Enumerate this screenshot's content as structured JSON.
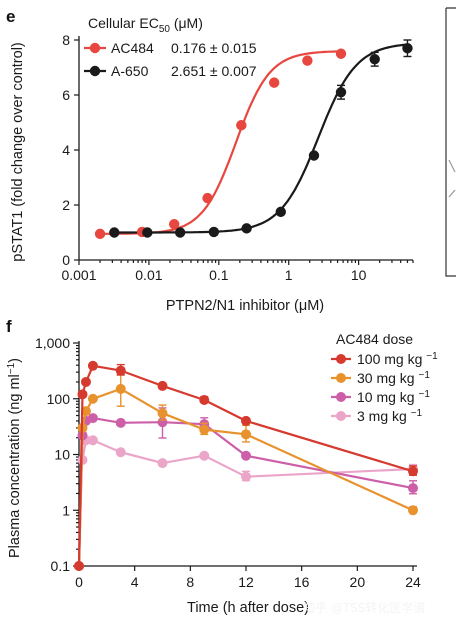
{
  "chart_data": [
    {
      "panel": "e",
      "type": "scatter",
      "x_scale": "log",
      "xlabel": "PTPN2/N1 inhibitor (μM)",
      "ylabel": "pSTAT1 (fold change over control)",
      "xlim": [
        0.001,
        60
      ],
      "ylim": [
        0,
        8
      ],
      "xticks": [
        "0.001",
        "0.01",
        "0.1",
        "1",
        "10"
      ],
      "yticks": [
        "0",
        "2",
        "4",
        "6",
        "8"
      ],
      "legend_title": "Cellular EC50 (μM)",
      "legend_placement": "top-left",
      "series": [
        {
          "name": "AC484",
          "ec50_text": "0.176 ± 0.015",
          "color": "#e8473f",
          "x": [
            0.002,
            0.008,
            0.023,
            0.069,
            0.21,
            0.62,
            1.85,
            5.6
          ],
          "y": [
            0.95,
            1.02,
            1.3,
            2.25,
            4.9,
            6.45,
            7.25,
            7.5
          ],
          "fit": {
            "bottom": 0.95,
            "top": 7.6,
            "ec50": 0.176,
            "hill": 1.8
          }
        },
        {
          "name": "A-650",
          "ec50_text": "2.651 ± 0.007",
          "color": "#1a1a1a",
          "x": [
            0.0032,
            0.0095,
            0.028,
            0.085,
            0.25,
            0.77,
            2.3,
            5.6,
            17,
            50
          ],
          "y": [
            1.0,
            1.0,
            1.0,
            1.02,
            1.15,
            1.75,
            3.8,
            6.1,
            7.3,
            7.7
          ],
          "yerr": [
            0,
            0,
            0,
            0,
            0,
            0,
            0,
            0.25,
            0.25,
            0.3
          ],
          "fit": {
            "bottom": 1.0,
            "top": 7.9,
            "ec50": 2.651,
            "hill": 1.6
          }
        }
      ]
    },
    {
      "panel": "f",
      "type": "line",
      "y_scale": "log",
      "xlabel": "Time (h after dose)",
      "ylabel": "Plasma concentration (ng ml-1)",
      "xlim": [
        0,
        24
      ],
      "ylim": [
        0.1,
        1000
      ],
      "xticks": [
        "0",
        "4",
        "8",
        "12",
        "16",
        "20",
        "24"
      ],
      "yticks": [
        "0.1",
        "1",
        "10",
        "100",
        "1,000"
      ],
      "legend_title": "AC484 dose",
      "legend_placement": "top-right",
      "series": [
        {
          "name": "100 mg kg-1",
          "color": "#d63a2f",
          "x": [
            0,
            0.25,
            0.5,
            1,
            3,
            6,
            9,
            12,
            24
          ],
          "y": [
            0.1,
            120,
            200,
            390,
            320,
            170,
            95,
            40,
            5
          ],
          "yerr_rel": [
            0,
            0,
            0,
            0,
            0.28,
            0,
            0.15,
            0,
            0.25
          ]
        },
        {
          "name": "30 mg kg-1",
          "color": "#e8922e",
          "x": [
            0,
            0.25,
            0.5,
            1,
            3,
            6,
            9,
            12,
            24
          ],
          "y": [
            0.1,
            30,
            60,
            100,
            150,
            55,
            28,
            23,
            1.0
          ],
          "yerr_rel": [
            0,
            0,
            0,
            0,
            0.85,
            0.4,
            0.3,
            0.45,
            0.15
          ]
        },
        {
          "name": "10 mg kg-1",
          "color": "#cc5fa8",
          "x": [
            0,
            0.25,
            0.5,
            1,
            3,
            6,
            9,
            12,
            24
          ],
          "y": [
            0.1,
            22,
            40,
            45,
            37,
            38,
            35,
            9.5,
            2.5
          ],
          "yerr_rel": [
            0,
            0,
            0,
            0,
            0,
            0.8,
            0.3,
            0,
            0.35
          ]
        },
        {
          "name": "3 mg kg-1",
          "color": "#eaa5c9",
          "x": [
            0.25,
            0.5,
            1,
            3,
            6,
            9,
            12,
            24
          ],
          "y": [
            8,
            18,
            18,
            11,
            7,
            9.5,
            4,
            5.5
          ],
          "yerr_rel": [
            0,
            0,
            0,
            0,
            0,
            0,
            0.25,
            0.2
          ]
        }
      ]
    }
  ],
  "watermark": "知乎 @TSS转化医学谱"
}
